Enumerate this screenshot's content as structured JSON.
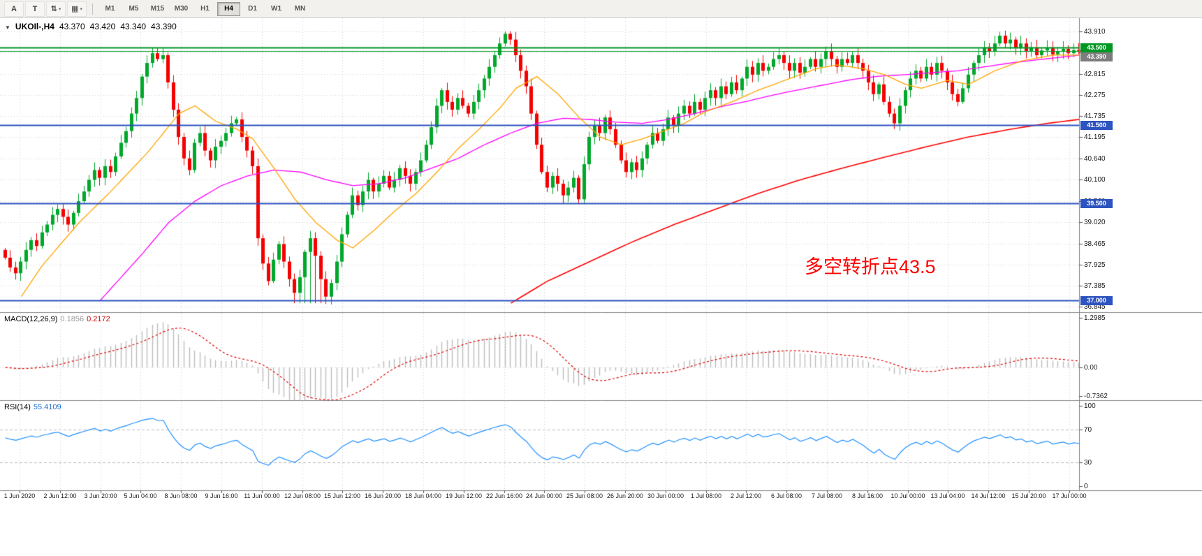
{
  "toolbar": {
    "tools": [
      {
        "name": "arrow-style-tool",
        "glyph": "A",
        "dropdown": false
      },
      {
        "name": "text-tool",
        "glyph": "T",
        "dropdown": false
      },
      {
        "name": "arrange-tool",
        "glyph": "⇅",
        "dropdown": true
      },
      {
        "name": "templates-tool",
        "glyph": "▦",
        "dropdown": true
      }
    ],
    "timeframes": [
      "M1",
      "M5",
      "M15",
      "M30",
      "H1",
      "H4",
      "D1",
      "W1",
      "MN"
    ],
    "active_timeframe": "H4"
  },
  "chart": {
    "title": {
      "symbol_period": "UKOIl-,H4",
      "open": "43.370",
      "high": "43.420",
      "low": "43.340",
      "close": "43.390"
    },
    "annotation": {
      "text": "多空转折点43.5",
      "color": "#ff0000"
    },
    "price_scale": [
      {
        "text": "43.910",
        "value": 43.91
      },
      {
        "text": "43.370",
        "value": 43.37
      },
      {
        "text": "42.815",
        "value": 42.815
      },
      {
        "text": "42.275",
        "value": 42.275
      },
      {
        "text": "41.735",
        "value": 41.735
      },
      {
        "text": "41.195",
        "value": 41.195
      },
      {
        "text": "40.640",
        "value": 40.64
      },
      {
        "text": "40.100",
        "value": 40.1
      },
      {
        "text": "39.560",
        "value": 39.56
      },
      {
        "text": "39.020",
        "value": 39.02
      },
      {
        "text": "38.465",
        "value": 38.465
      },
      {
        "text": "37.925",
        "value": 37.925
      },
      {
        "text": "37.385",
        "value": 37.385
      },
      {
        "text": "36.845",
        "value": 36.845
      }
    ],
    "price_tags": [
      {
        "text": "43.500",
        "value": 43.5,
        "bg": "#009624",
        "fg": "#ffffff"
      },
      {
        "text": "43.390",
        "value": 43.39,
        "bg": "#7d7d7d",
        "fg": "#ffffff"
      },
      {
        "text": "41.500",
        "value": 41.5,
        "bg": "#2d53c0",
        "fg": "#ffffff"
      },
      {
        "text": "39.500",
        "value": 39.5,
        "bg": "#2d53c0",
        "fg": "#ffffff"
      },
      {
        "text": "37.000",
        "value": 37.0,
        "bg": "#2d53c0",
        "fg": "#ffffff"
      }
    ]
  },
  "indicators": {
    "macd": {
      "label": "MACD(12,26,9)",
      "value1": "0.1856",
      "value2": "0.2172",
      "scale": [
        {
          "text": "1.2985",
          "value": 1.2985
        },
        {
          "text": "0.00",
          "value": 0
        },
        {
          "text": "-0.7362",
          "value": -0.7362
        }
      ]
    },
    "rsi": {
      "label": "RSI(14)",
      "value": "55.4109",
      "levels": [
        {
          "text": "100",
          "value": 100,
          "dashed": false
        },
        {
          "text": "70",
          "value": 70,
          "dashed": true
        },
        {
          "text": "30",
          "value": 30,
          "dashed": true
        },
        {
          "text": "0",
          "value": 0,
          "dashed": false
        }
      ]
    }
  },
  "time_axis": {
    "labels": [
      "1 Jun 2020",
      "2 Jun 12:00",
      "3 Jun 20:00",
      "5 Jun 04:00",
      "8 Jun 08:00",
      "9 Jun 16:00",
      "11 Jun 00:00",
      "12 Jun 08:00",
      "15 Jun 12:00",
      "16 Jun 20:00",
      "18 Jun 04:00",
      "19 Jun 12:00",
      "22 Jun 16:00",
      "24 Jun 00:00",
      "25 Jun 08:00",
      "26 Jun 20:00",
      "30 Jun 00:00",
      "1 Jul 08:00",
      "2 Jul 12:00",
      "6 Jul 08:00",
      "7 Jul 08:00",
      "8 Jul 16:00",
      "10 Jul 00:00",
      "13 Jul 04:00",
      "14 Jul 12:00",
      "15 Jul 20:00",
      "17 Jul 00:00"
    ]
  },
  "chart_data": {
    "type": "candlestick",
    "symbol": "UKOIl",
    "period": "H4",
    "price_range": {
      "max": 44.25,
      "min": 36.7
    },
    "macd_range": {
      "max": 1.4,
      "min": -0.85
    },
    "rsi_range": {
      "max": 105,
      "min": -5
    },
    "closes": [
      38.1,
      37.85,
      37.7,
      38.0,
      38.3,
      38.55,
      38.4,
      38.75,
      38.95,
      39.2,
      39.35,
      39.15,
      38.95,
      39.25,
      39.55,
      39.8,
      40.1,
      40.35,
      40.15,
      40.45,
      40.3,
      40.7,
      41.05,
      41.35,
      41.8,
      42.2,
      42.75,
      43.1,
      43.35,
      43.2,
      43.3,
      42.6,
      41.9,
      41.2,
      40.65,
      40.35,
      41.05,
      41.3,
      40.85,
      40.6,
      40.95,
      41.1,
      41.3,
      41.55,
      41.65,
      41.2,
      40.85,
      40.45,
      38.6,
      37.95,
      37.5,
      38.05,
      38.45,
      38.0,
      37.55,
      37.2,
      37.6,
      38.25,
      38.6,
      38.15,
      37.55,
      37.1,
      37.45,
      38.0,
      38.7,
      39.2,
      39.7,
      39.45,
      39.8,
      40.1,
      39.8,
      40.0,
      40.2,
      39.9,
      40.1,
      40.4,
      40.2,
      40.0,
      40.3,
      40.6,
      41.0,
      41.45,
      42.0,
      42.4,
      42.1,
      41.9,
      42.2,
      42.0,
      41.8,
      42.1,
      42.4,
      42.7,
      43.0,
      43.3,
      43.6,
      43.85,
      43.7,
      43.3,
      42.9,
      42.5,
      41.8,
      41.0,
      40.3,
      39.9,
      40.2,
      40.0,
      39.7,
      39.9,
      40.15,
      39.6,
      40.5,
      41.2,
      41.5,
      41.3,
      41.7,
      41.4,
      41.0,
      40.6,
      40.3,
      40.55,
      40.35,
      40.65,
      41.0,
      41.3,
      41.1,
      41.4,
      41.7,
      41.5,
      41.8,
      42.0,
      41.8,
      42.1,
      41.9,
      42.2,
      42.4,
      42.2,
      42.5,
      42.3,
      42.6,
      42.4,
      42.7,
      43.0,
      42.8,
      43.1,
      42.9,
      43.0,
      43.2,
      43.3,
      43.1,
      42.9,
      43.1,
      42.85,
      43.0,
      43.2,
      43.0,
      43.2,
      43.4,
      43.2,
      43.0,
      43.2,
      43.1,
      43.3,
      43.1,
      42.9,
      42.6,
      42.3,
      42.55,
      42.1,
      41.8,
      41.55,
      42.0,
      42.4,
      42.7,
      42.9,
      42.7,
      43.0,
      42.8,
      43.1,
      42.9,
      42.6,
      42.3,
      42.1,
      42.45,
      42.8,
      43.1,
      43.3,
      43.5,
      43.4,
      43.6,
      43.8,
      43.6,
      43.7,
      43.5,
      43.6,
      43.4,
      43.5,
      43.3,
      43.42,
      43.5,
      43.32,
      43.4,
      43.46,
      43.35,
      43.43,
      43.39
    ],
    "ma_fast": [
      [
        2,
        36.9
      ],
      [
        7,
        37.9
      ],
      [
        14,
        39.0
      ],
      [
        20,
        39.8
      ],
      [
        27,
        40.8
      ],
      [
        33,
        41.8
      ],
      [
        36,
        42.0
      ],
      [
        40,
        41.6
      ],
      [
        44,
        41.4
      ],
      [
        47,
        41.15
      ],
      [
        51,
        40.4
      ],
      [
        55,
        39.6
      ],
      [
        59,
        39.0
      ],
      [
        63,
        38.55
      ],
      [
        66,
        38.35
      ],
      [
        70,
        38.8
      ],
      [
        74,
        39.3
      ],
      [
        78,
        39.75
      ],
      [
        82,
        40.3
      ],
      [
        86,
        40.9
      ],
      [
        90,
        41.4
      ],
      [
        94,
        41.95
      ],
      [
        97,
        42.45
      ],
      [
        101,
        42.75
      ],
      [
        105,
        42.3
      ],
      [
        109,
        41.7
      ],
      [
        113,
        41.2
      ],
      [
        117,
        41.0
      ],
      [
        121,
        41.15
      ],
      [
        125,
        41.35
      ],
      [
        129,
        41.55
      ],
      [
        133,
        41.85
      ],
      [
        138,
        42.1
      ],
      [
        143,
        42.4
      ],
      [
        149,
        42.7
      ],
      [
        154,
        42.95
      ],
      [
        158,
        43.05
      ],
      [
        163,
        42.95
      ],
      [
        167,
        42.8
      ],
      [
        171,
        42.55
      ],
      [
        174,
        42.45
      ],
      [
        179,
        42.65
      ],
      [
        183,
        42.55
      ],
      [
        188,
        42.9
      ],
      [
        193,
        43.15
      ],
      [
        199,
        43.3
      ],
      [
        204,
        43.3
      ]
    ],
    "ma_mid": [
      [
        17,
        36.85
      ],
      [
        22,
        37.6
      ],
      [
        26,
        38.2
      ],
      [
        31,
        39.0
      ],
      [
        36,
        39.55
      ],
      [
        41,
        39.95
      ],
      [
        46,
        40.2
      ],
      [
        51,
        40.35
      ],
      [
        56,
        40.3
      ],
      [
        61,
        40.1
      ],
      [
        66,
        39.95
      ],
      [
        71,
        40.0
      ],
      [
        76,
        40.15
      ],
      [
        81,
        40.4
      ],
      [
        86,
        40.65
      ],
      [
        91,
        41.0
      ],
      [
        96,
        41.3
      ],
      [
        101,
        41.55
      ],
      [
        106,
        41.68
      ],
      [
        111,
        41.65
      ],
      [
        116,
        41.58
      ],
      [
        121,
        41.55
      ],
      [
        126,
        41.65
      ],
      [
        131,
        41.8
      ],
      [
        136,
        41.98
      ],
      [
        141,
        42.12
      ],
      [
        146,
        42.28
      ],
      [
        151,
        42.42
      ],
      [
        156,
        42.55
      ],
      [
        161,
        42.68
      ],
      [
        166,
        42.76
      ],
      [
        171,
        42.8
      ],
      [
        176,
        42.85
      ],
      [
        181,
        42.9
      ],
      [
        186,
        43.0
      ],
      [
        191,
        43.1
      ],
      [
        196,
        43.18
      ],
      [
        204,
        43.3
      ]
    ],
    "ma_slow": [
      [
        95,
        36.85
      ],
      [
        103,
        37.5
      ],
      [
        111,
        38.0
      ],
      [
        119,
        38.5
      ],
      [
        127,
        38.95
      ],
      [
        135,
        39.35
      ],
      [
        143,
        39.75
      ],
      [
        151,
        40.1
      ],
      [
        159,
        40.4
      ],
      [
        167,
        40.68
      ],
      [
        175,
        40.95
      ],
      [
        183,
        41.2
      ],
      [
        191,
        41.4
      ],
      [
        198,
        41.55
      ],
      [
        204,
        41.65
      ]
    ],
    "hlines": [
      {
        "value": 43.5,
        "color": "#009624",
        "width": 2
      },
      {
        "value": 43.41,
        "color": "#009624",
        "width": 1
      },
      {
        "value": 41.5,
        "color": "#2d53c0",
        "width": 2
      },
      {
        "value": 39.5,
        "color": "#2d53c0",
        "width": 2
      },
      {
        "value": 37.0,
        "color": "#2d53c0",
        "width": 2
      }
    ],
    "colors": {
      "up": "#00a82a",
      "down": "#f40000",
      "ma_fast": "#ffa500",
      "ma_mid": "#ff00ff",
      "ma_slow": "#ff0000",
      "macd_hist": "#bdbdbd",
      "macd_signal": "#e00000",
      "rsi": "#1e90ff",
      "grid": "#d2d2d2",
      "border": "#808080",
      "level_dash": "#b8b8b8"
    }
  }
}
